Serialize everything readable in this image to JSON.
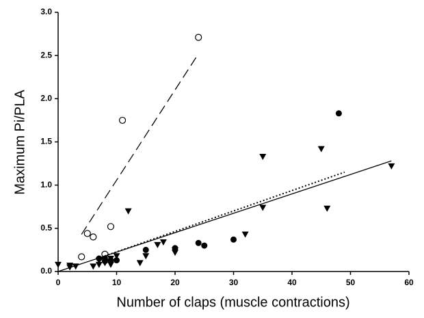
{
  "chart_data": {
    "type": "scatter",
    "x_label": "Number of claps (muscle contractions)",
    "y_label": "Maximum Pi/PLA",
    "xlim": [
      0,
      60
    ],
    "xticks": [
      0,
      10,
      20,
      30,
      40,
      50,
      60
    ],
    "ylim": [
      0,
      3
    ],
    "yticks": [
      {
        "value": 0,
        "label": "0.0"
      },
      {
        "value": 0.5,
        "label": "0.5"
      },
      {
        "value": 1,
        "label": "1.0"
      },
      {
        "value": 1.5,
        "label": "1.5"
      },
      {
        "value": 2,
        "label": "2.0"
      },
      {
        "value": 2.5,
        "label": "2.5"
      },
      {
        "value": 3,
        "label": "3.0"
      }
    ],
    "color": "#000000",
    "series": [
      {
        "marker": "open-circle",
        "x": [
          4,
          5,
          6,
          8,
          9,
          11,
          24
        ],
        "values": [
          0.17,
          0.44,
          0.4,
          0.2,
          0.52,
          1.75,
          2.71
        ]
      },
      {
        "marker": "filled-circle",
        "x": [
          7,
          8,
          8,
          9,
          10,
          15,
          20,
          24,
          25,
          30,
          48
        ],
        "values": [
          0.15,
          0.15,
          0.12,
          0.13,
          0.13,
          0.25,
          0.27,
          0.33,
          0.3,
          0.37,
          1.83
        ]
      },
      {
        "marker": "triangle-down",
        "x": [
          0,
          2,
          2,
          3,
          6,
          7,
          7,
          8,
          9,
          9,
          10,
          12,
          14,
          15,
          17,
          18,
          20,
          20,
          32,
          35,
          35,
          45,
          46,
          57
        ],
        "values": [
          0.08,
          0.05,
          0.07,
          0.06,
          0.06,
          0.08,
          0.13,
          0.1,
          0.08,
          0.15,
          0.18,
          0.7,
          0.1,
          0.18,
          0.31,
          0.34,
          0.22,
          0.25,
          0.43,
          1.33,
          0.74,
          1.42,
          0.73,
          1.22
        ]
      },
      {
        "line": "dashed",
        "x": [
          4,
          24
        ],
        "values": [
          0.43,
          2.52
        ]
      },
      {
        "line": "solid",
        "x": [
          0,
          57
        ],
        "values": [
          0,
          1.28
        ]
      },
      {
        "line": "dotted",
        "x": [
          8,
          49
        ],
        "values": [
          0.18,
          1.15
        ]
      }
    ]
  }
}
